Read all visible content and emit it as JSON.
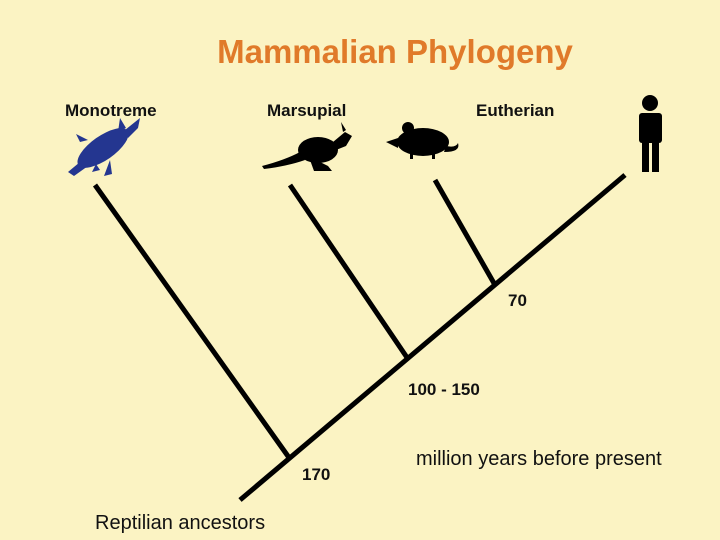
{
  "title": "Mammalian Phylogeny",
  "taxa": [
    {
      "label": "Monotreme"
    },
    {
      "label": "Marsupial"
    },
    {
      "label": "Eutherian"
    }
  ],
  "nodes": [
    {
      "label": "170"
    },
    {
      "label": "100 - 150"
    },
    {
      "label": "70"
    }
  ],
  "caption": "million years before present",
  "root": "Reptilian ancestors"
}
